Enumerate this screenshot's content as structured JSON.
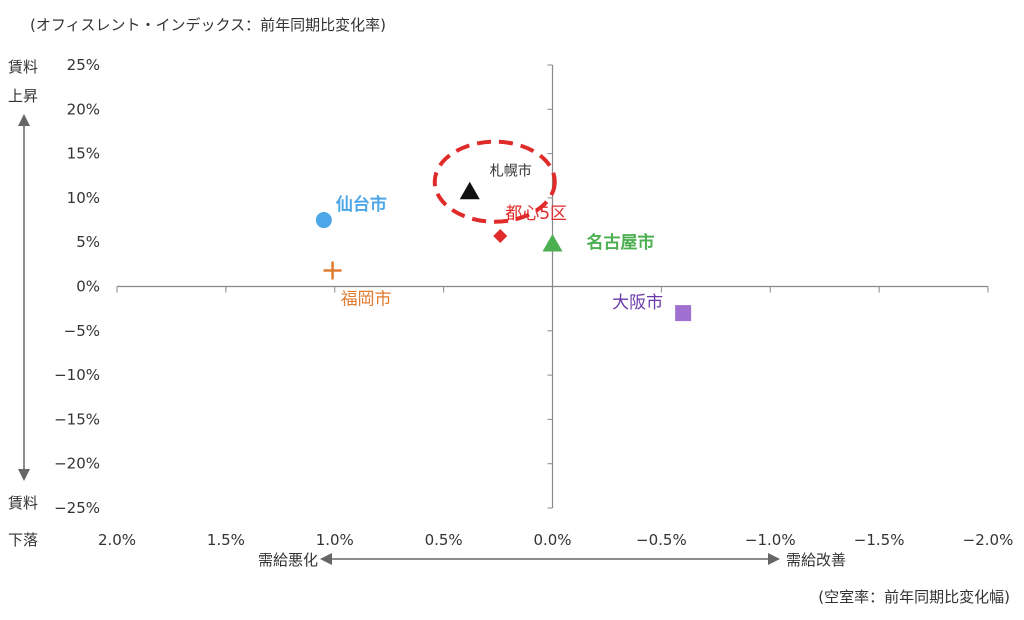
{
  "chart_data": {
    "type": "scatter",
    "y_note": "(オフィスレント・インデックス：前年同期比変化率)",
    "x_note": "(空室率：前年同期比変化幅)",
    "y_top_label": [
      "賃料",
      "上昇"
    ],
    "y_bottom_label": [
      "賃料",
      "下落"
    ],
    "x_left_label": "需給悪化",
    "x_right_label": "需給改善",
    "xlim": [
      2.0,
      -2.0
    ],
    "ylim": [
      -25,
      25
    ],
    "x_reversed": true,
    "x_ticks": [
      {
        "value": 2.0,
        "label": "2.0%"
      },
      {
        "value": 1.5,
        "label": "1.5%"
      },
      {
        "value": 1.0,
        "label": "1.0%"
      },
      {
        "value": 0.5,
        "label": "0.5%"
      },
      {
        "value": 0.0,
        "label": "0.0%"
      },
      {
        "value": -0.5,
        "label": "−0.5%"
      },
      {
        "value": -1.0,
        "label": "−1.0%"
      },
      {
        "value": -1.5,
        "label": "−1.5%"
      },
      {
        "value": -2.0,
        "label": "−2.0%"
      }
    ],
    "y_ticks": [
      {
        "value": 25,
        "label": "25%"
      },
      {
        "value": 20,
        "label": "20%"
      },
      {
        "value": 15,
        "label": "15%"
      },
      {
        "value": 10,
        "label": "10%"
      },
      {
        "value": 5,
        "label": "5%"
      },
      {
        "value": 0,
        "label": "0%"
      },
      {
        "value": -5,
        "label": "−5%"
      },
      {
        "value": -10,
        "label": "−10%"
      },
      {
        "value": -15,
        "label": "−15%"
      },
      {
        "value": -20,
        "label": "−20%"
      },
      {
        "value": -25,
        "label": "−25%"
      }
    ],
    "points": [
      {
        "name": "仙台市",
        "x": 1.05,
        "y": 7.5,
        "marker": "circle",
        "color": "#4da6e8",
        "bold": true
      },
      {
        "name": "福岡市",
        "x": 1.01,
        "y": 1.8,
        "marker": "plus",
        "color": "#e07b30",
        "bold": false
      },
      {
        "name": "札幌市",
        "x": 0.38,
        "y": 10.7,
        "marker": "triangle",
        "color": "#111111",
        "bold": false
      },
      {
        "name": "都心5区",
        "x": 0.24,
        "y": 5.7,
        "marker": "diamond",
        "color": "#e02b2b",
        "bold": false
      },
      {
        "name": "名古屋市",
        "x": 0.0,
        "y": 4.8,
        "marker": "triangle",
        "color": "#4caf50",
        "bold": true
      },
      {
        "name": "大阪市",
        "x": -0.6,
        "y": -3.0,
        "marker": "square",
        "color": "#a070d0",
        "bold": false
      }
    ],
    "highlight": {
      "target": "札幌市",
      "shape": "dashed-ellipse",
      "color": "#e02b2b"
    },
    "grid": false,
    "legend": "none"
  }
}
